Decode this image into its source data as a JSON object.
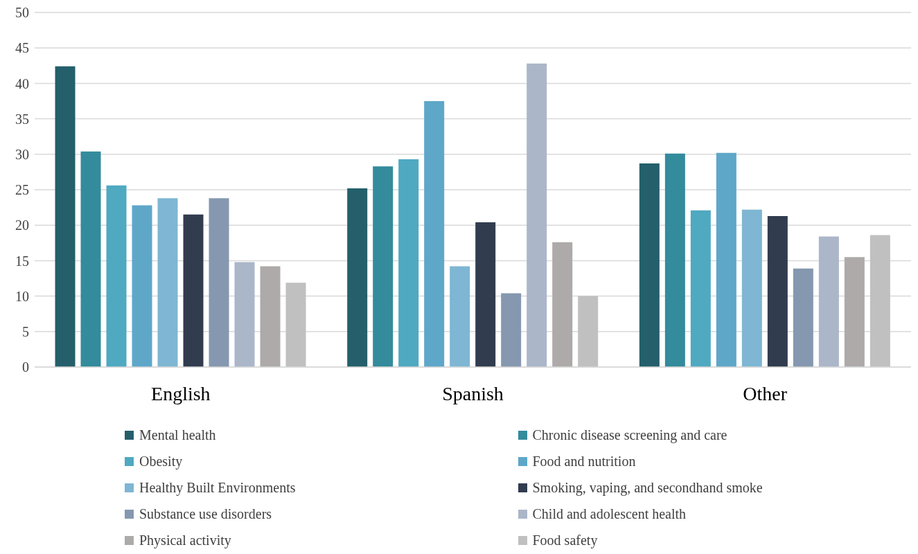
{
  "chart_data": {
    "type": "bar",
    "categories": [
      "English",
      "Spanish",
      "Other"
    ],
    "series": [
      {
        "name": "Mental health",
        "color": "#245f6b",
        "values": [
          42.4,
          25.2,
          28.7
        ]
      },
      {
        "name": "Chronic disease screening and care",
        "color": "#338b9b",
        "values": [
          30.4,
          28.3,
          30.1
        ]
      },
      {
        "name": "Obesity",
        "color": "#4fa9c1",
        "values": [
          25.6,
          29.3,
          22.1
        ]
      },
      {
        "name": "Food and nutrition",
        "color": "#5ea7c9",
        "values": [
          22.8,
          37.5,
          30.2
        ]
      },
      {
        "name": "Healthy Built Environments",
        "color": "#7fb6d3",
        "values": [
          23.8,
          14.2,
          22.2
        ]
      },
      {
        "name": "Smoking, vaping, and secondhand smoke",
        "color": "#323c4f",
        "values": [
          21.5,
          20.4,
          21.3
        ]
      },
      {
        "name": "Substance use disorders",
        "color": "#8598b0",
        "values": [
          23.8,
          10.4,
          13.9
        ]
      },
      {
        "name": "Child and adolescent health",
        "color": "#abb6c9",
        "values": [
          14.8,
          42.8,
          18.4
        ]
      },
      {
        "name": "Physical activity",
        "color": "#aeaaaa",
        "values": [
          14.2,
          17.6,
          15.5
        ]
      },
      {
        "name": "Food safety",
        "color": "#c0c0c0",
        "values": [
          11.9,
          10.0,
          18.6
        ]
      }
    ],
    "ylim": [
      0,
      50
    ],
    "yticks": [
      0,
      5,
      10,
      15,
      20,
      25,
      30,
      35,
      40,
      45,
      50
    ],
    "grid": "y",
    "legend": "bottom"
  }
}
